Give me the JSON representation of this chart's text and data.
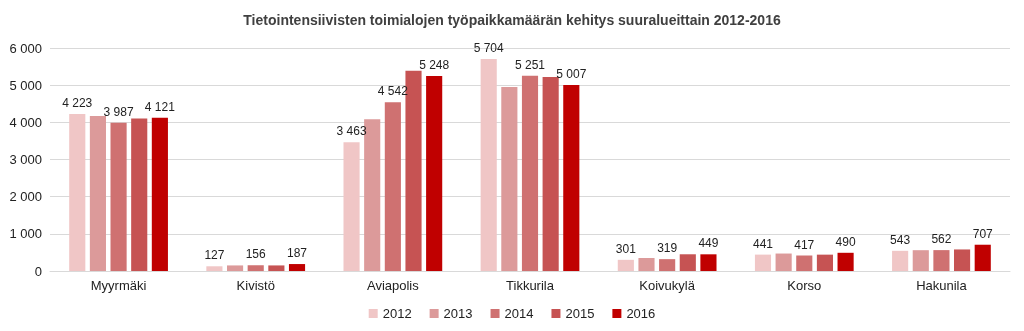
{
  "chart_data": {
    "type": "bar",
    "title": "Tietointensiivisten toimialojen työpaikkamäärän kehitys suuralueittain 2012-2016",
    "categories": [
      "Myyrmäki",
      "Kivistö",
      "Aviapolis",
      "Tikkurila",
      "Koivukylä",
      "Korso",
      "Hakunila"
    ],
    "series": [
      {
        "name": "2012",
        "color": "#f0c6c6",
        "values": [
          4223,
          127,
          3463,
          5704,
          301,
          441,
          543
        ],
        "value_labels": [
          "4 223",
          "127",
          "3 463",
          "5 704",
          "301",
          "441",
          "543"
        ]
      },
      {
        "name": "2013",
        "color": "#dc9a9a",
        "values": [
          4170,
          150,
          4080,
          4950,
          350,
          470,
          560
        ]
      },
      {
        "name": "2014",
        "color": "#cf7171",
        "values": [
          3987,
          156,
          4542,
          5251,
          319,
          417,
          562
        ],
        "value_labels": [
          "3 987",
          "156",
          "4 542",
          "5 251",
          "319",
          "417",
          "562"
        ]
      },
      {
        "name": "2015",
        "color": "#c65353",
        "values": [
          4100,
          150,
          5390,
          5220,
          450,
          440,
          580
        ]
      },
      {
        "name": "2016",
        "color": "#c00000",
        "values": [
          4121,
          187,
          5248,
          5007,
          449,
          490,
          707
        ],
        "value_labels": [
          "4 121",
          "187",
          "5 248",
          "5 007",
          "449",
          "490",
          "707"
        ]
      }
    ],
    "ylim": [
      0,
      6000
    ],
    "yticks": [
      0,
      {
        "value": 1000,
        "label": "1 000"
      },
      {
        "value": 2000,
        "label": "2 000"
      },
      {
        "value": 3000,
        "label": "3 000"
      },
      {
        "value": 4000,
        "label": "4 000"
      },
      {
        "value": 5000,
        "label": "5 000"
      },
      {
        "value": 6000,
        "label": "6 000"
      }
    ],
    "grid": "y",
    "legend": "bottom"
  }
}
